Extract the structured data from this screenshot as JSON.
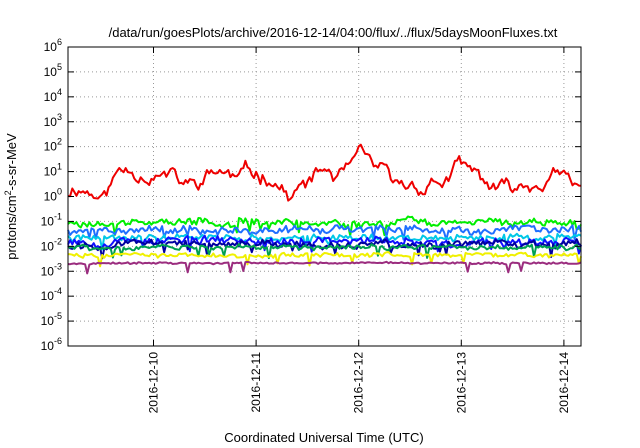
{
  "chart_data": {
    "type": "line",
    "title": "/data/run/goesPlots/archive/2016-12-14/04:00/flux/../flux/5daysMoonFluxes.txt",
    "xlabel": "Coordinated Universal Time (UTC)",
    "ylabel": "protons/cm²-s-sr-MeV",
    "ylabel_parts": {
      "pre": "protons/cm",
      "sup": "2",
      "post": "-s-sr-MeV"
    },
    "yscale": "log",
    "ylim": [
      1e-06,
      1000000.0
    ],
    "y_ticks": [
      {
        "base": "10",
        "exp": "-6"
      },
      {
        "base": "10",
        "exp": "-5"
      },
      {
        "base": "10",
        "exp": "-4"
      },
      {
        "base": "10",
        "exp": "-3"
      },
      {
        "base": "10",
        "exp": "-2"
      },
      {
        "base": "10",
        "exp": "-1"
      },
      {
        "base": "10",
        "exp": "0"
      },
      {
        "base": "10",
        "exp": "1"
      },
      {
        "base": "10",
        "exp": "2"
      },
      {
        "base": "10",
        "exp": "3"
      },
      {
        "base": "10",
        "exp": "4"
      },
      {
        "base": "10",
        "exp": "5"
      },
      {
        "base": "10",
        "exp": "6"
      }
    ],
    "xlim": [
      "2016-12-09T04:00",
      "2016-12-14T04:00"
    ],
    "x_ticks": [
      "2016-12-10",
      "2016-12-11",
      "2016-12-12",
      "2016-12-13",
      "2016-12-14"
    ],
    "grid": true,
    "series": [
      {
        "color": "#ee0000",
        "level": 8,
        "noise": 0.25,
        "drift": 1.0,
        "seed": 11,
        "points": [
          [
            "2016-12-09T04:00",
            1.5
          ],
          [
            "2016-12-09T06:00",
            3
          ],
          [
            "2016-12-09T09:00",
            2
          ],
          [
            "2016-12-09T12:00",
            0.8
          ],
          [
            "2016-12-09T14:00",
            3
          ],
          [
            "2016-12-09T16:00",
            10
          ],
          [
            "2016-12-09T20:00",
            15
          ],
          [
            "2016-12-10T00:00",
            12
          ],
          [
            "2016-12-10T03:00",
            8
          ],
          [
            "2016-12-10T06:00",
            3
          ],
          [
            "2016-12-10T09:00",
            2
          ],
          [
            "2016-12-10T12:00",
            5
          ],
          [
            "2016-12-10T16:00",
            10
          ],
          [
            "2016-12-10T20:00",
            4
          ],
          [
            "2016-12-11T00:00",
            8
          ],
          [
            "2016-12-11T04:00",
            8
          ],
          [
            "2016-12-11T08:00",
            1
          ],
          [
            "2016-12-11T12:00",
            3
          ],
          [
            "2016-12-11T16:00",
            10
          ],
          [
            "2016-12-11T20:00",
            5
          ],
          [
            "2016-12-12T00:00",
            20
          ],
          [
            "2016-12-12T04:00",
            10
          ],
          [
            "2016-12-12T09:00",
            1.5
          ],
          [
            "2016-12-12T14:00",
            3
          ],
          [
            "2016-12-12T20:00",
            5
          ],
          [
            "2016-12-13T00:00",
            12
          ],
          [
            "2016-12-13T05:00",
            4
          ],
          [
            "2016-12-13T09:00",
            1.2
          ],
          [
            "2016-12-13T14:00",
            2
          ],
          [
            "2016-12-13T20:00",
            6
          ],
          [
            "2016-12-14T00:00",
            5
          ],
          [
            "2016-12-14T02:00",
            1.5
          ],
          [
            "2016-12-14T04:00",
            2
          ]
        ]
      },
      {
        "color": "#00ee00",
        "level": 0.09,
        "noise": 0.45,
        "drift": 0.25,
        "seed": 23
      },
      {
        "color": "#1f6fff",
        "level": 0.045,
        "noise": 0.5,
        "drift": 0.25,
        "seed": 37
      },
      {
        "color": "#00c8e6",
        "level": 0.022,
        "noise": 0.4,
        "drift": 0.2,
        "seed": 41
      },
      {
        "color": "#1010ff",
        "level": 0.016,
        "noise": 0.5,
        "drift": 0.25,
        "seed": 53
      },
      {
        "color": "#0000a0",
        "level": 0.012,
        "noise": 0.45,
        "drift": 0.2,
        "seed": 67
      },
      {
        "color": "#00a050",
        "level": 0.009,
        "noise": 0.3,
        "drift": 0.15,
        "seed": 71
      },
      {
        "color": "#f0f000",
        "level": 0.0045,
        "noise": 0.3,
        "drift": 0.1,
        "seed": 83
      },
      {
        "color": "#9b2d7f",
        "level": 0.0021,
        "noise": 0.12,
        "drift": 0.05,
        "seed": 97
      }
    ]
  }
}
